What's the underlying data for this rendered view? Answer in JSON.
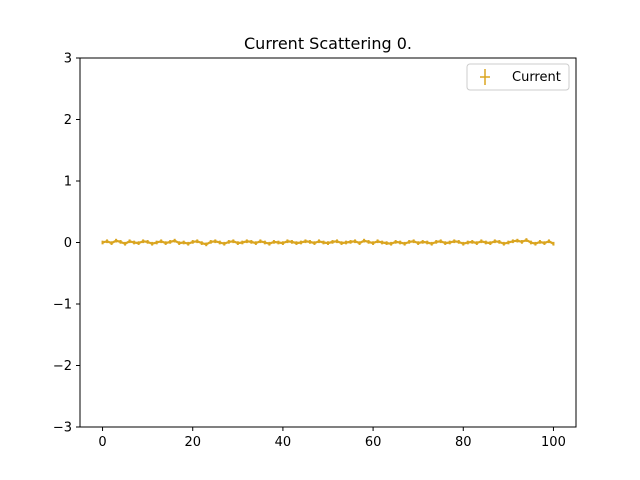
{
  "chart_data": {
    "type": "scatter",
    "title": "Current Scattering 0.",
    "xlabel": "",
    "ylabel": "",
    "xlim": [
      -5,
      105
    ],
    "ylim": [
      -3,
      3
    ],
    "x_ticks": [
      0,
      20,
      40,
      60,
      80,
      100
    ],
    "x_tick_labels": [
      "0",
      "20",
      "40",
      "60",
      "80",
      "100"
    ],
    "y_ticks": [
      -3,
      -2,
      -1,
      0,
      1,
      2,
      3
    ],
    "y_tick_labels": [
      "−3",
      "−2",
      "−1",
      "0",
      "1",
      "2",
      "3"
    ],
    "grid": false,
    "legend_position": "top-right",
    "series": [
      {
        "name": "Current",
        "color": "#DAA520",
        "marker": "errorbar",
        "x_start": 0,
        "x_end": 100,
        "y_values": [
          0.0,
          0.02,
          -0.01,
          0.03,
          0.01,
          -0.02,
          0.02,
          0.0,
          -0.01,
          0.02,
          0.01,
          -0.02,
          0.0,
          0.02,
          -0.01,
          0.01,
          0.03,
          -0.01,
          0.0,
          -0.02,
          0.01,
          0.02,
          -0.01,
          -0.03,
          0.01,
          0.02,
          0.0,
          -0.02,
          0.01,
          0.02,
          -0.01,
          0.0,
          0.02,
          0.01,
          -0.01,
          0.02,
          0.0,
          -0.02,
          0.01,
          0.0,
          -0.01,
          0.02,
          0.01,
          -0.01,
          0.0,
          0.02,
          0.01,
          -0.01,
          0.02,
          0.0,
          -0.01,
          0.01,
          0.02,
          -0.01,
          0.0,
          0.01,
          0.02,
          -0.01,
          0.03,
          0.01,
          -0.01,
          0.02,
          0.0,
          -0.01,
          -0.02,
          0.01,
          0.0,
          -0.02,
          0.01,
          0.02,
          -0.01,
          0.01,
          0.0,
          -0.02,
          0.01,
          0.02,
          -0.01,
          0.0,
          0.02,
          0.01,
          -0.02,
          0.0,
          0.01,
          -0.01,
          0.02,
          0.0,
          -0.01,
          0.02,
          0.01,
          -0.02,
          0.0,
          0.02,
          0.03,
          0.01,
          0.04,
          0.0,
          -0.02,
          0.01,
          -0.01,
          0.02,
          -0.02
        ],
        "error": 0.03
      }
    ]
  }
}
